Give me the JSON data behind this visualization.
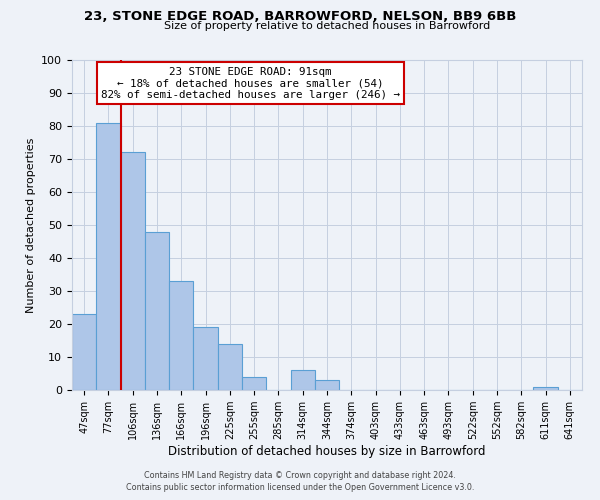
{
  "title1": "23, STONE EDGE ROAD, BARROWFORD, NELSON, BB9 6BB",
  "title2": "Size of property relative to detached houses in Barrowford",
  "xlabel": "Distribution of detached houses by size in Barrowford",
  "ylabel": "Number of detached properties",
  "bin_labels": [
    "47sqm",
    "77sqm",
    "106sqm",
    "136sqm",
    "166sqm",
    "196sqm",
    "225sqm",
    "255sqm",
    "285sqm",
    "314sqm",
    "344sqm",
    "374sqm",
    "403sqm",
    "433sqm",
    "463sqm",
    "493sqm",
    "522sqm",
    "552sqm",
    "582sqm",
    "611sqm",
    "641sqm"
  ],
  "bar_values": [
    23,
    81,
    72,
    48,
    33,
    19,
    14,
    4,
    0,
    6,
    3,
    0,
    0,
    0,
    0,
    0,
    0,
    0,
    0,
    1,
    0
  ],
  "bar_color": "#aec6e8",
  "bar_edge_color": "#5a9fd4",
  "annotation_title": "23 STONE EDGE ROAD: 91sqm",
  "annotation_line1": "← 18% of detached houses are smaller (54)",
  "annotation_line2": "82% of semi-detached houses are larger (246) →",
  "annotation_box_color": "#ffffff",
  "annotation_box_edge": "#cc0000",
  "vline_color": "#cc0000",
  "ylim": [
    0,
    100
  ],
  "yticks": [
    0,
    10,
    20,
    30,
    40,
    50,
    60,
    70,
    80,
    90,
    100
  ],
  "footer1": "Contains HM Land Registry data © Crown copyright and database right 2024.",
  "footer2": "Contains public sector information licensed under the Open Government Licence v3.0.",
  "background_color": "#eef2f8",
  "grid_color": "#c5cfe0",
  "vline_x_index": 1.5
}
